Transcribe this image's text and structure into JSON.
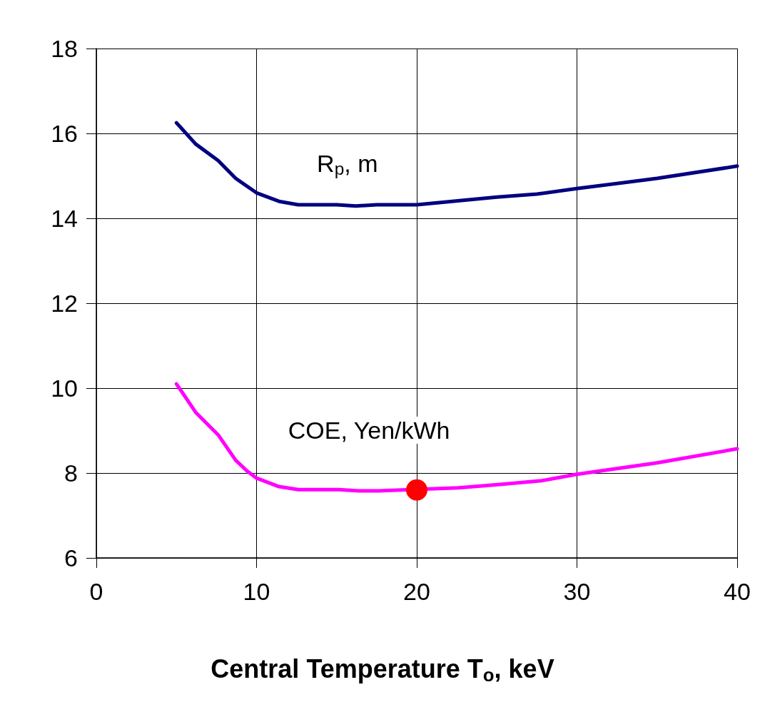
{
  "chart_data": {
    "type": "line",
    "xlabel": "Central Temperature T$_{o}$, keV",
    "xlim": [
      0,
      40
    ],
    "xticks": [
      0,
      10,
      20,
      30,
      40
    ],
    "ylim": [
      6,
      18
    ],
    "yticks": [
      6,
      8,
      10,
      12,
      14,
      16,
      18
    ],
    "grid": true,
    "marker": "none",
    "line_style": "solid",
    "series": [
      {
        "name": "R$_{p}$, m",
        "color": "#000080",
        "x": [
          5,
          6.2,
          7.6,
          8.7,
          10,
          11.4,
          12.6,
          15,
          16.2,
          17.5,
          20,
          25,
          27.5,
          30,
          35,
          40
        ],
        "values": [
          16.25,
          15.75,
          15.36,
          14.94,
          14.6,
          14.4,
          14.32,
          14.32,
          14.29,
          14.32,
          14.32,
          14.5,
          14.57,
          14.7,
          14.94,
          15.23
        ]
      },
      {
        "name": "COE, Yen/kWh",
        "color": "#ff00ff",
        "x": [
          5,
          6.2,
          7.6,
          8.7,
          9.4,
          10,
          11.4,
          12.6,
          15.1,
          16.4,
          17.6,
          22.6,
          25.2,
          27.8,
          30,
          35,
          40
        ],
        "values": [
          10.1,
          9.43,
          8.9,
          8.3,
          8.05,
          7.88,
          7.68,
          7.61,
          7.61,
          7.58,
          7.58,
          7.65,
          7.73,
          7.82,
          7.97,
          8.24,
          8.57
        ]
      },
      {
        "type": "scatter",
        "marker": "circle",
        "color": "#ff0000",
        "x": [
          20
        ],
        "values": [
          7.6
        ]
      }
    ]
  }
}
